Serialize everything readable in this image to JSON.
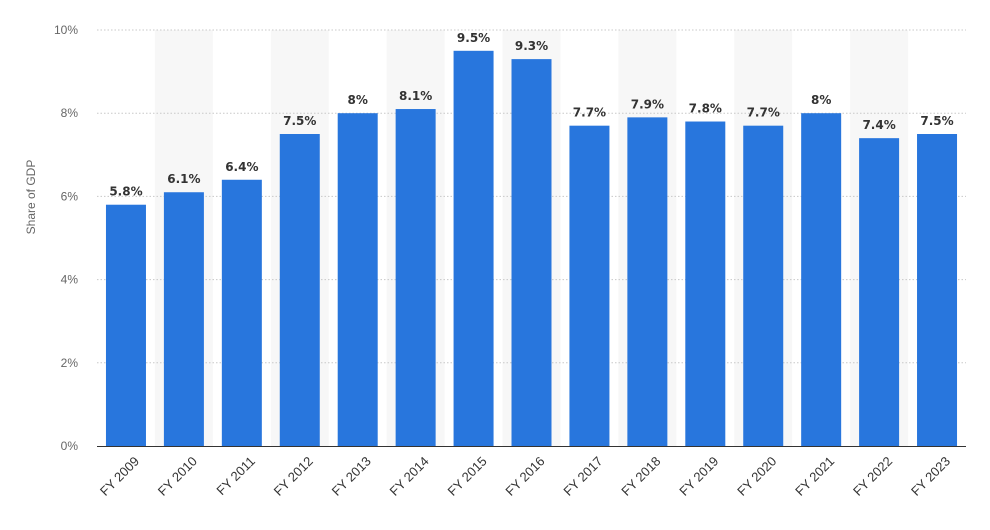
{
  "chart_data": {
    "type": "bar",
    "ylabel": "Share of GDP",
    "xlabel": "",
    "ylim": [
      0,
      10
    ],
    "y_ticks": [
      0,
      2,
      4,
      6,
      8,
      10
    ],
    "y_tick_labels": [
      "0%",
      "2%",
      "4%",
      "6%",
      "8%",
      "10%"
    ],
    "grid": true,
    "categories": [
      "FY 2009",
      "FY 2010",
      "FY 2011",
      "FY 2012",
      "FY 2013",
      "FY 2014",
      "FY 2015",
      "FY 2016",
      "FY 2017",
      "FY 2018",
      "FY 2019",
      "FY 2020",
      "FY 2021",
      "FY 2022",
      "FY 2023"
    ],
    "values": [
      5.8,
      6.1,
      6.4,
      7.5,
      8,
      8.1,
      9.5,
      9.3,
      7.7,
      7.9,
      7.8,
      7.7,
      8,
      7.4,
      7.5
    ],
    "value_labels": [
      "5.8%",
      "6.1%",
      "6.4%",
      "7.5%",
      "8%",
      "8.1%",
      "9.5%",
      "9.3%",
      "7.7%",
      "7.9%",
      "7.8%",
      "7.7%",
      "8%",
      "7.4%",
      "7.5%"
    ],
    "colors": {
      "bar": "#2876dd",
      "grid": "#c8c8c8",
      "band": "#f7f7f7",
      "axis": "#333333"
    }
  }
}
